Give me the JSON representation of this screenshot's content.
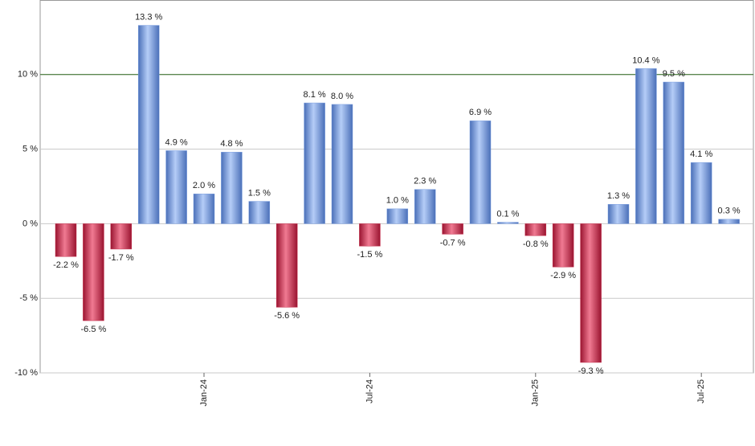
{
  "chart_data": {
    "type": "bar",
    "categories": [
      null,
      null,
      null,
      null,
      null,
      "Jan-24",
      null,
      null,
      null,
      null,
      null,
      "Jul-24",
      null,
      null,
      null,
      null,
      null,
      "Jan-25",
      null,
      null,
      null,
      null,
      null,
      "Jul-25",
      null
    ],
    "values": [
      -2.2,
      -6.5,
      -1.7,
      13.3,
      4.9,
      2.0,
      4.8,
      1.5,
      -5.6,
      8.1,
      8.0,
      -1.5,
      1.0,
      2.3,
      -0.7,
      6.9,
      0.1,
      -0.8,
      -2.9,
      -9.3,
      1.3,
      10.4,
      9.5,
      4.1,
      0.3
    ],
    "value_labels": [
      "-2.2 %",
      "-6.5 %",
      "-1.7 %",
      "13.3 %",
      "4.9 %",
      "2.0 %",
      "4.8 %",
      "1.5 %",
      "-5.6 %",
      "8.1 %",
      "8.0 %",
      "-1.5 %",
      "1.0 %",
      "2.3 %",
      "-0.7 %",
      "6.9 %",
      "0.1 %",
      "-0.8 %",
      "-2.9 %",
      "-9.3 %",
      "1.3 %",
      "10.4 %",
      "9.5 %",
      "4.1 %",
      "0.3 %"
    ],
    "positive_color": "#7b9fe0",
    "negative_color": "#c83350",
    "ylim": [
      -10,
      15
    ],
    "yticks": [
      {
        "value": -10,
        "label": "-10 %"
      },
      {
        "value": -5,
        "label": "-5 %"
      },
      {
        "value": 0,
        "label": "0 %"
      },
      {
        "value": 5,
        "label": "5 %"
      },
      {
        "value": 10,
        "label": "10 %"
      }
    ],
    "grid": true,
    "reference_line": {
      "value": 10,
      "color": "#2e6b1e"
    }
  }
}
